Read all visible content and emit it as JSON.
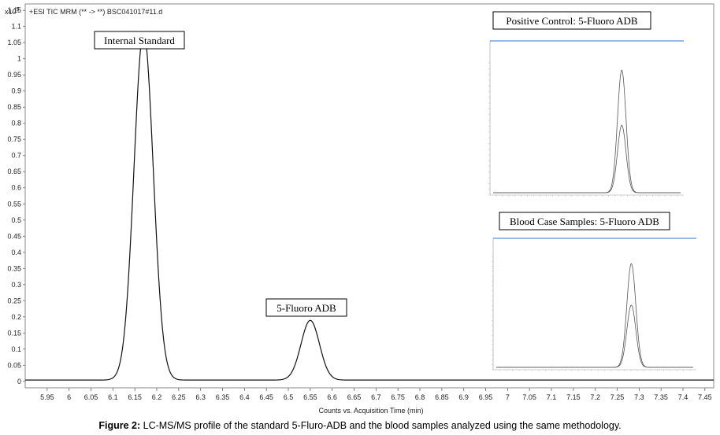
{
  "chart_data": [
    {
      "type": "line",
      "header": "+ESI TIC MRM (** -> **) BSC041017#11.d",
      "y_exponent_label": "x10",
      "y_exponent_power": "5",
      "xlabel": "Counts vs. Acquisition Time (min)",
      "xlim": [
        5.9,
        7.47
      ],
      "ylim": [
        -0.02,
        1.17
      ],
      "xticks": [
        "5.95",
        "6",
        "6.05",
        "6.1",
        "6.15",
        "6.2",
        "6.25",
        "6.3",
        "6.35",
        "6.4",
        "6.45",
        "6.5",
        "6.55",
        "6.6",
        "6.65",
        "6.7",
        "6.75",
        "6.8",
        "6.85",
        "6.9",
        "6.95",
        "7",
        "7.05",
        "7.1",
        "7.15",
        "7.2",
        "7.25",
        "7.3",
        "7.35",
        "7.4",
        "7.45"
      ],
      "yticks": [
        "0",
        "0.05",
        "0.1",
        "0.15",
        "0.2",
        "0.25",
        "0.3",
        "0.35",
        "0.4",
        "0.45",
        "0.5",
        "0.55",
        "0.6",
        "0.65",
        "0.7",
        "0.75",
        "0.8",
        "0.85",
        "0.9",
        "0.95",
        "1",
        "1.05",
        "1.1",
        "1.15"
      ],
      "peaks": [
        {
          "name": "Internal Standard",
          "rt": 6.17,
          "height": 1.08
        },
        {
          "name": "5-Fluoro ADB",
          "rt": 6.55,
          "height": 0.185
        }
      ],
      "annotations": [
        "Internal Standard",
        "5-Fluoro ADB"
      ]
    },
    {
      "type": "line",
      "title": "Positive Control: 5-Fluoro ADB",
      "peak_rt": 6.55,
      "traces_relative_height": [
        1.0,
        0.55
      ]
    },
    {
      "type": "line",
      "title": "Blood Case Samples: 5-Fluoro ADB",
      "peak_rt": 6.6,
      "traces_relative_height": [
        1.0,
        0.6
      ]
    }
  ],
  "caption": {
    "label": "Figure 2:",
    "text": " LC-MS/MS profile of the standard 5-Fluro-ADB and the blood samples analyzed using the same methodology."
  }
}
